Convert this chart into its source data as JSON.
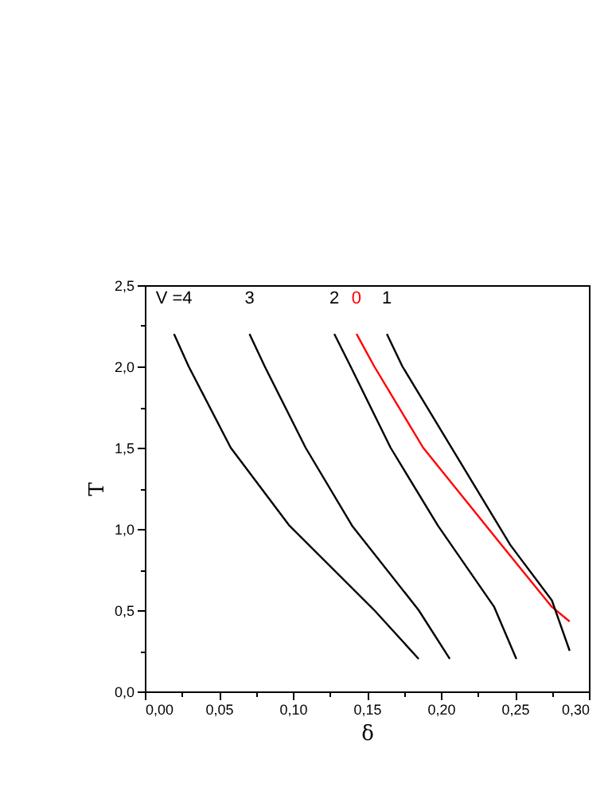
{
  "chart_data": {
    "type": "line",
    "xlabel": "δ",
    "ylabel": "T",
    "series": [
      {
        "name": "V =4",
        "color": "#000000",
        "x": [
          0.0197,
          0.0296,
          0.058,
          0.0977,
          0.155,
          0.185
        ],
        "values": [
          2.2,
          2.0,
          1.5,
          1.02,
          0.5,
          0.2
        ]
      },
      {
        "name": "3",
        "color": "#000000",
        "x": [
          0.0707,
          0.081,
          0.1086,
          0.14,
          0.185,
          0.206
        ],
        "values": [
          2.2,
          2.0,
          1.5,
          1.02,
          0.5,
          0.2
        ]
      },
      {
        "name": "2",
        "color": "#000000",
        "x": [
          0.128,
          0.139,
          0.166,
          0.198,
          0.236,
          0.251
        ],
        "values": [
          2.2,
          2.0,
          1.5,
          1.02,
          0.52,
          0.2
        ]
      },
      {
        "name": "0",
        "color": "#ff0000",
        "x": [
          0.143,
          0.155,
          0.188,
          0.242,
          0.275,
          0.287
        ],
        "values": [
          2.2,
          2.0,
          1.5,
          0.89,
          0.52,
          0.43
        ]
      },
      {
        "name": "1",
        "color": "#000000",
        "x": [
          0.1635,
          0.174,
          0.247,
          0.275,
          0.287
        ],
        "values": [
          2.2,
          2.0,
          0.9,
          0.56,
          0.25
        ]
      }
    ],
    "xlim": [
      0,
      0.3
    ],
    "xticks": [
      {
        "value": 0,
        "label": "0,00"
      },
      {
        "value": 0.025,
        "label": null
      },
      {
        "value": 0.05,
        "label": "0,05"
      },
      {
        "value": 0.075,
        "label": null
      },
      {
        "value": 0.1,
        "label": "0,10"
      },
      {
        "value": 0.125,
        "label": null
      },
      {
        "value": 0.15,
        "label": "0,15"
      },
      {
        "value": 0.175,
        "label": null
      },
      {
        "value": 0.2,
        "label": "0,20"
      },
      {
        "value": 0.225,
        "label": null
      },
      {
        "value": 0.25,
        "label": "0,25"
      },
      {
        "value": 0.275,
        "label": null
      },
      {
        "value": 0.3,
        "label": "0,30"
      }
    ],
    "ylim": [
      0,
      2.5
    ],
    "yticks": [
      {
        "value": 0,
        "label": "0,0"
      },
      {
        "value": 0.25,
        "label": null
      },
      {
        "value": 0.5,
        "label": "0,5"
      },
      {
        "value": 0.75,
        "label": null
      },
      {
        "value": 1,
        "label": "1,0"
      },
      {
        "value": 1.25,
        "label": null
      },
      {
        "value": 1.5,
        "label": "1,5"
      },
      {
        "value": 1.75,
        "label": null
      },
      {
        "value": 2,
        "label": "2,0"
      },
      {
        "value": 2.25,
        "label": null
      },
      {
        "value": 2.5,
        "label": "2,5"
      }
    ],
    "grid": false,
    "legend": false,
    "marker": "none",
    "line_style": "solid"
  }
}
